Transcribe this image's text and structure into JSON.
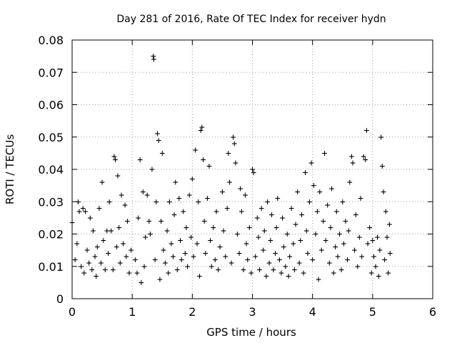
{
  "chart_data": {
    "type": "scatter",
    "title": "Day 281 of 2016, Rate Of TEC Index for receiver hydn",
    "xlabel": "GPS time / hours",
    "ylabel": "ROTI / TECUs",
    "xlim": [
      0,
      6
    ],
    "ylim": [
      0,
      0.08
    ],
    "x_ticks": [
      0,
      1,
      2,
      3,
      4,
      5,
      6
    ],
    "y_ticks": [
      0,
      0.01,
      0.02,
      0.03,
      0.04,
      0.05,
      0.06,
      0.07,
      0.08
    ],
    "x_tick_labels": [
      "0",
      "1",
      "2",
      "3",
      "4",
      "5",
      "6"
    ],
    "y_tick_labels": [
      "0",
      "0.01",
      "0.02",
      "0.03",
      "0.04",
      "0.05",
      "0.06",
      "0.07",
      "0.08"
    ],
    "grid": true,
    "marker": "+",
    "marker_color": "#ff0000",
    "series": [
      {
        "name": "ROTI",
        "points": [
          [
            0.0,
            0.0235
          ],
          [
            0.05,
            0.012
          ],
          [
            0.08,
            0.017
          ],
          [
            0.1,
            0.03
          ],
          [
            0.12,
            0.027
          ],
          [
            0.15,
            0.01
          ],
          [
            0.18,
            0.028
          ],
          [
            0.2,
            0.008
          ],
          [
            0.22,
            0.027
          ],
          [
            0.25,
            0.015
          ],
          [
            0.28,
            0.011
          ],
          [
            0.3,
            0.025
          ],
          [
            0.33,
            0.009
          ],
          [
            0.35,
            0.021
          ],
          [
            0.38,
            0.013
          ],
          [
            0.4,
            0.007
          ],
          [
            0.42,
            0.016
          ],
          [
            0.45,
            0.028
          ],
          [
            0.48,
            0.011
          ],
          [
            0.5,
            0.036
          ],
          [
            0.52,
            0.018
          ],
          [
            0.55,
            0.009
          ],
          [
            0.58,
            0.021
          ],
          [
            0.6,
            0.014
          ],
          [
            0.62,
            0.03
          ],
          [
            0.65,
            0.021
          ],
          [
            0.68,
            0.009
          ],
          [
            0.7,
            0.044
          ],
          [
            0.72,
            0.043
          ],
          [
            0.74,
            0.016
          ],
          [
            0.76,
            0.038
          ],
          [
            0.78,
            0.022
          ],
          [
            0.8,
            0.011
          ],
          [
            0.82,
            0.032
          ],
          [
            0.85,
            0.017
          ],
          [
            0.88,
            0.029
          ],
          [
            0.9,
            0.013
          ],
          [
            0.92,
            0.024
          ],
          [
            0.95,
            0.008
          ],
          [
            0.98,
            0.015
          ],
          [
            1.05,
            0.012
          ],
          [
            1.08,
            0.008
          ],
          [
            1.1,
            0.025
          ],
          [
            1.13,
            0.043
          ],
          [
            1.15,
            0.005
          ],
          [
            1.18,
            0.033
          ],
          [
            1.2,
            0.01
          ],
          [
            1.22,
            0.019
          ],
          [
            1.25,
            0.032
          ],
          [
            1.28,
            0.024
          ],
          [
            1.3,
            0.02
          ],
          [
            1.33,
            0.04
          ],
          [
            1.35,
            0.075
          ],
          [
            1.36,
            0.074
          ],
          [
            1.38,
            0.012
          ],
          [
            1.4,
            0.03
          ],
          [
            1.42,
            0.051
          ],
          [
            1.44,
            0.049
          ],
          [
            1.46,
            0.006
          ],
          [
            1.48,
            0.024
          ],
          [
            1.5,
            0.045
          ],
          [
            1.52,
            0.015
          ],
          [
            1.55,
            0.011
          ],
          [
            1.58,
            0.021
          ],
          [
            1.6,
            0.008
          ],
          [
            1.62,
            0.03
          ],
          [
            1.65,
            0.017
          ],
          [
            1.68,
            0.013
          ],
          [
            1.7,
            0.026
          ],
          [
            1.72,
            0.036
          ],
          [
            1.75,
            0.009
          ],
          [
            1.78,
            0.031
          ],
          [
            1.8,
            0.018
          ],
          [
            1.82,
            0.012
          ],
          [
            1.85,
            0.027
          ],
          [
            1.88,
            0.014
          ],
          [
            1.9,
            0.022
          ],
          [
            1.92,
            0.01
          ],
          [
            1.95,
            0.032
          ],
          [
            1.98,
            0.019
          ],
          [
            2.0,
            0.037
          ],
          [
            2.02,
            0.013
          ],
          [
            2.05,
            0.046
          ],
          [
            2.08,
            0.017
          ],
          [
            2.1,
            0.03
          ],
          [
            2.12,
            0.007
          ],
          [
            2.14,
            0.052
          ],
          [
            2.16,
            0.053
          ],
          [
            2.18,
            0.043
          ],
          [
            2.2,
            0.024
          ],
          [
            2.22,
            0.014
          ],
          [
            2.25,
            0.031
          ],
          [
            2.28,
            0.041
          ],
          [
            2.3,
            0.018
          ],
          [
            2.32,
            0.01
          ],
          [
            2.35,
            0.022
          ],
          [
            2.38,
            0.012
          ],
          [
            2.4,
            0.027
          ],
          [
            2.43,
            0.009
          ],
          [
            2.46,
            0.016
          ],
          [
            2.5,
            0.033
          ],
          [
            2.52,
            0.021
          ],
          [
            2.55,
            0.013
          ],
          [
            2.58,
            0.028
          ],
          [
            2.6,
            0.045
          ],
          [
            2.62,
            0.036
          ],
          [
            2.65,
            0.011
          ],
          [
            2.68,
            0.05
          ],
          [
            2.7,
            0.048
          ],
          [
            2.72,
            0.042
          ],
          [
            2.75,
            0.02
          ],
          [
            2.78,
            0.014
          ],
          [
            2.8,
            0.034
          ],
          [
            2.82,
            0.027
          ],
          [
            2.85,
            0.009
          ],
          [
            2.88,
            0.032
          ],
          [
            2.9,
            0.017
          ],
          [
            2.92,
            0.012
          ],
          [
            2.95,
            0.022
          ],
          [
            2.98,
            0.008
          ],
          [
            3.0,
            0.04
          ],
          [
            3.02,
            0.039
          ],
          [
            3.05,
            0.013
          ],
          [
            3.08,
            0.025
          ],
          [
            3.1,
            0.019
          ],
          [
            3.12,
            0.009
          ],
          [
            3.15,
            0.028
          ],
          [
            3.18,
            0.015
          ],
          [
            3.2,
            0.021
          ],
          [
            3.23,
            0.007
          ],
          [
            3.25,
            0.03
          ],
          [
            3.28,
            0.011
          ],
          [
            3.3,
            0.018
          ],
          [
            3.32,
            0.026
          ],
          [
            3.35,
            0.009
          ],
          [
            3.38,
            0.014
          ],
          [
            3.4,
            0.022
          ],
          [
            3.42,
            0.031
          ],
          [
            3.45,
            0.012
          ],
          [
            3.48,
            0.008
          ],
          [
            3.5,
            0.025
          ],
          [
            3.52,
            0.016
          ],
          [
            3.55,
            0.01
          ],
          [
            3.58,
            0.02
          ],
          [
            3.6,
            0.007
          ],
          [
            3.62,
            0.013
          ],
          [
            3.65,
            0.028
          ],
          [
            3.68,
            0.017
          ],
          [
            3.7,
            0.009
          ],
          [
            3.72,
            0.023
          ],
          [
            3.75,
            0.033
          ],
          [
            3.78,
            0.011
          ],
          [
            3.8,
            0.018
          ],
          [
            3.82,
            0.026
          ],
          [
            3.85,
            0.008
          ],
          [
            3.88,
            0.039
          ],
          [
            3.9,
            0.021
          ],
          [
            3.92,
            0.014
          ],
          [
            3.95,
            0.03
          ],
          [
            3.98,
            0.042
          ],
          [
            4.0,
            0.012
          ],
          [
            4.02,
            0.035
          ],
          [
            4.05,
            0.02
          ],
          [
            4.08,
            0.027
          ],
          [
            4.1,
            0.006
          ],
          [
            4.12,
            0.033
          ],
          [
            4.15,
            0.015
          ],
          [
            4.18,
            0.024
          ],
          [
            4.2,
            0.045
          ],
          [
            4.22,
            0.018
          ],
          [
            4.25,
            0.029
          ],
          [
            4.28,
            0.011
          ],
          [
            4.3,
            0.022
          ],
          [
            4.32,
            0.034
          ],
          [
            4.35,
            0.008
          ],
          [
            4.38,
            0.016
          ],
          [
            4.4,
            0.027
          ],
          [
            4.42,
            0.013
          ],
          [
            4.45,
            0.02
          ],
          [
            4.48,
            0.009
          ],
          [
            4.5,
            0.03
          ],
          [
            4.52,
            0.017
          ],
          [
            4.55,
            0.024
          ],
          [
            4.58,
            0.012
          ],
          [
            4.6,
            0.021
          ],
          [
            4.62,
            0.036
          ],
          [
            4.65,
            0.044
          ],
          [
            4.67,
            0.042
          ],
          [
            4.7,
            0.015
          ],
          [
            4.72,
            0.026
          ],
          [
            4.75,
            0.01
          ],
          [
            4.78,
            0.019
          ],
          [
            4.8,
            0.031
          ],
          [
            4.82,
            0.013
          ],
          [
            4.85,
            0.044
          ],
          [
            4.88,
            0.043
          ],
          [
            4.9,
            0.052
          ],
          [
            4.92,
            0.017
          ],
          [
            4.95,
            0.022
          ],
          [
            4.98,
            0.008
          ],
          [
            5.0,
            0.018
          ],
          [
            5.02,
            0.013
          ],
          [
            5.05,
            0.01
          ],
          [
            5.08,
            0.019
          ],
          [
            5.1,
            0.007
          ],
          [
            5.12,
            0.015
          ],
          [
            5.14,
            0.05
          ],
          [
            5.16,
            0.041
          ],
          [
            5.18,
            0.033
          ],
          [
            5.2,
            0.012
          ],
          [
            5.22,
            0.027
          ],
          [
            5.24,
            0.019
          ],
          [
            5.26,
            0.008
          ],
          [
            5.28,
            0.023
          ],
          [
            5.29,
            0.014
          ]
        ]
      }
    ]
  }
}
